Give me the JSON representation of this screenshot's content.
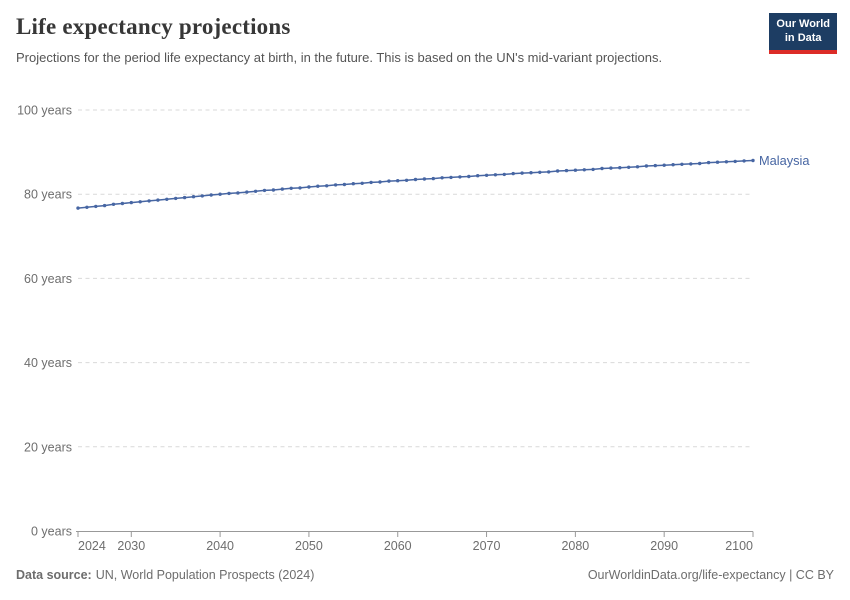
{
  "header": {
    "title": "Life expectancy projections",
    "subtitle": "Projections for the period life expectancy at birth, in the future. This is based on the UN's mid-variant projections.",
    "logo": {
      "line1": "Our World",
      "line2": "in Data"
    }
  },
  "footer": {
    "source_label": "Data source:",
    "source_text": "UN, World Population Prospects (2024)",
    "link_text": "OurWorldinData.org/life-expectancy | CC BY"
  },
  "colors": {
    "series_blue": "#4766a3",
    "grid_gray": "#d9d9d9",
    "axis_gray": "#999999",
    "tick_text_gray": "#6e6e6e",
    "logo_bg": "#1d3d63",
    "logo_red": "#dc2c27"
  },
  "chart_data": {
    "type": "line",
    "title": "Life expectancy projections",
    "xlabel": "",
    "ylabel": "",
    "xlim": [
      2024,
      2100
    ],
    "ylim": [
      0,
      100
    ],
    "grid": true,
    "legend_position": "end-of-line",
    "y_ticks": [
      0,
      20,
      40,
      60,
      80,
      100
    ],
    "y_tick_suffix": " years",
    "x_ticks": [
      2024,
      2030,
      2040,
      2050,
      2060,
      2070,
      2080,
      2090,
      2100
    ],
    "series": [
      {
        "name": "Malaysia",
        "color": "#4766a3",
        "x": [
          2024,
          2025,
          2026,
          2027,
          2028,
          2029,
          2030,
          2031,
          2032,
          2033,
          2034,
          2035,
          2036,
          2037,
          2038,
          2039,
          2040,
          2041,
          2042,
          2043,
          2044,
          2045,
          2046,
          2047,
          2048,
          2049,
          2050,
          2051,
          2052,
          2053,
          2054,
          2055,
          2056,
          2057,
          2058,
          2059,
          2060,
          2061,
          2062,
          2063,
          2064,
          2065,
          2066,
          2067,
          2068,
          2069,
          2070,
          2071,
          2072,
          2073,
          2074,
          2075,
          2076,
          2077,
          2078,
          2079,
          2080,
          2081,
          2082,
          2083,
          2084,
          2085,
          2086,
          2087,
          2088,
          2089,
          2090,
          2091,
          2092,
          2093,
          2094,
          2095,
          2096,
          2097,
          2098,
          2099,
          2100
        ],
        "values": [
          76.7,
          76.9,
          77.1,
          77.3,
          77.6,
          77.8,
          78.0,
          78.2,
          78.4,
          78.6,
          78.8,
          79.0,
          79.2,
          79.4,
          79.6,
          79.8,
          80.0,
          80.2,
          80.3,
          80.5,
          80.7,
          80.9,
          81.0,
          81.2,
          81.4,
          81.5,
          81.7,
          81.9,
          82.0,
          82.2,
          82.3,
          82.5,
          82.6,
          82.8,
          82.9,
          83.1,
          83.2,
          83.3,
          83.5,
          83.6,
          83.7,
          83.9,
          84.0,
          84.1,
          84.2,
          84.4,
          84.5,
          84.6,
          84.7,
          84.9,
          85.0,
          85.1,
          85.2,
          85.3,
          85.5,
          85.6,
          85.7,
          85.8,
          85.9,
          86.1,
          86.2,
          86.3,
          86.4,
          86.5,
          86.7,
          86.8,
          86.9,
          87.0,
          87.1,
          87.2,
          87.3,
          87.5,
          87.6,
          87.7,
          87.8,
          87.9,
          88.0
        ]
      }
    ]
  }
}
